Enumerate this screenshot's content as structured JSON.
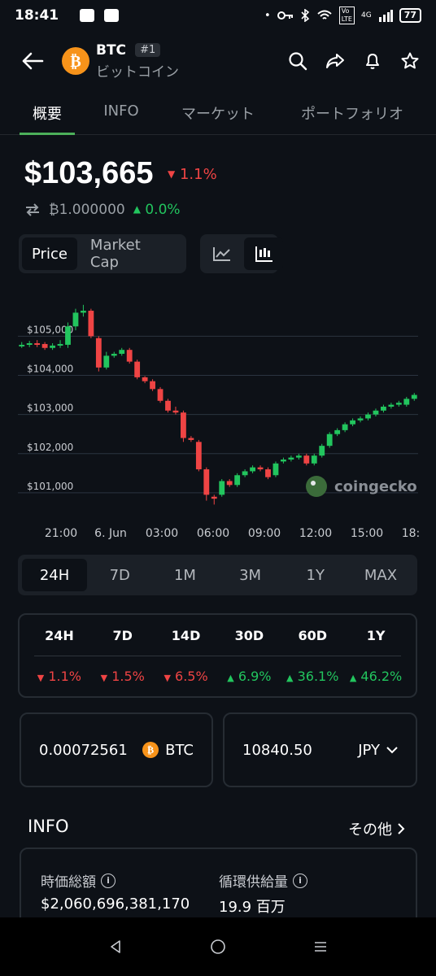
{
  "status": {
    "time": "18:41",
    "battery": "77",
    "network": "4G"
  },
  "header": {
    "symbol": "BTC",
    "rank": "#1",
    "name_jp": "ビットコイン"
  },
  "tabs": [
    "概要",
    "INFO",
    "マーケット",
    "ポートフォリオ"
  ],
  "price": {
    "value": "$103,665",
    "change": "1.1%",
    "btc_value": "₿1.000000",
    "btc_change": "0.0%"
  },
  "chart_toggle": {
    "price": "Price",
    "market_cap": "Market Cap"
  },
  "chart_data": {
    "type": "candlestick",
    "y_ticks": [
      "$105,000",
      "$104,000",
      "$103,000",
      "$102,000",
      "$101,000"
    ],
    "x_ticks": [
      "21:00",
      "6. Jun",
      "03:00",
      "06:00",
      "09:00",
      "12:00",
      "15:00",
      "18:"
    ],
    "ylim": [
      100500,
      105900
    ],
    "watermark": "coingecko",
    "candles": [
      {
        "o": 104750,
        "c": 104780,
        "h": 104850,
        "l": 104700
      },
      {
        "o": 104780,
        "c": 104820,
        "h": 104880,
        "l": 104720
      },
      {
        "o": 104820,
        "c": 104800,
        "h": 104900,
        "l": 104720
      },
      {
        "o": 104800,
        "c": 104700,
        "h": 104850,
        "l": 104650
      },
      {
        "o": 104700,
        "c": 104760,
        "h": 104820,
        "l": 104650
      },
      {
        "o": 104760,
        "c": 104800,
        "h": 104900,
        "l": 104700
      },
      {
        "o": 104780,
        "c": 105250,
        "h": 105350,
        "l": 104700
      },
      {
        "o": 105250,
        "c": 105600,
        "h": 105700,
        "l": 105150
      },
      {
        "o": 105600,
        "c": 105650,
        "h": 105800,
        "l": 105500
      },
      {
        "o": 105650,
        "c": 105000,
        "h": 105700,
        "l": 104950
      },
      {
        "o": 104950,
        "c": 104200,
        "h": 105000,
        "l": 104100
      },
      {
        "o": 104200,
        "c": 104500,
        "h": 104600,
        "l": 104150
      },
      {
        "o": 104500,
        "c": 104550,
        "h": 104600,
        "l": 104450
      },
      {
        "o": 104550,
        "c": 104650,
        "h": 104700,
        "l": 104500
      },
      {
        "o": 104650,
        "c": 104350,
        "h": 104700,
        "l": 104300
      },
      {
        "o": 104350,
        "c": 103950,
        "h": 104400,
        "l": 103900
      },
      {
        "o": 103950,
        "c": 103850,
        "h": 103980,
        "l": 103800
      },
      {
        "o": 103850,
        "c": 103650,
        "h": 103900,
        "l": 103600
      },
      {
        "o": 103650,
        "c": 103350,
        "h": 103700,
        "l": 103300
      },
      {
        "o": 103350,
        "c": 103100,
        "h": 103400,
        "l": 103050
      },
      {
        "o": 103100,
        "c": 103050,
        "h": 103200,
        "l": 103000
      },
      {
        "o": 103050,
        "c": 102400,
        "h": 103100,
        "l": 102300
      },
      {
        "o": 102400,
        "c": 102350,
        "h": 102450,
        "l": 102300
      },
      {
        "o": 102300,
        "c": 101600,
        "h": 102350,
        "l": 101550
      },
      {
        "o": 101600,
        "c": 100950,
        "h": 101650,
        "l": 100800
      },
      {
        "o": 100900,
        "c": 100850,
        "h": 100950,
        "l": 100700
      },
      {
        "o": 100950,
        "c": 101300,
        "h": 101350,
        "l": 100900
      },
      {
        "o": 101300,
        "c": 101200,
        "h": 101350,
        "l": 101150
      },
      {
        "o": 101200,
        "c": 101450,
        "h": 101500,
        "l": 101150
      },
      {
        "o": 101450,
        "c": 101550,
        "h": 101600,
        "l": 101400
      },
      {
        "o": 101550,
        "c": 101650,
        "h": 101700,
        "l": 101500
      },
      {
        "o": 101650,
        "c": 101600,
        "h": 101700,
        "l": 101550
      },
      {
        "o": 101600,
        "c": 101400,
        "h": 101650,
        "l": 101350
      },
      {
        "o": 101450,
        "c": 101750,
        "h": 101800,
        "l": 101400
      },
      {
        "o": 101800,
        "c": 101850,
        "h": 101900,
        "l": 101750
      },
      {
        "o": 101850,
        "c": 101900,
        "h": 101950,
        "l": 101800
      },
      {
        "o": 101900,
        "c": 101950,
        "h": 102000,
        "l": 101850
      },
      {
        "o": 101950,
        "c": 101750,
        "h": 102000,
        "l": 101700
      },
      {
        "o": 101750,
        "c": 101950,
        "h": 102000,
        "l": 101700
      },
      {
        "o": 101950,
        "c": 102200,
        "h": 102250,
        "l": 101900
      },
      {
        "o": 102200,
        "c": 102500,
        "h": 102550,
        "l": 102150
      },
      {
        "o": 102500,
        "c": 102600,
        "h": 102650,
        "l": 102450
      },
      {
        "o": 102600,
        "c": 102750,
        "h": 102800,
        "l": 102550
      },
      {
        "o": 102750,
        "c": 102850,
        "h": 102900,
        "l": 102700
      },
      {
        "o": 102850,
        "c": 102900,
        "h": 102950,
        "l": 102800
      },
      {
        "o": 102900,
        "c": 103000,
        "h": 103050,
        "l": 102850
      },
      {
        "o": 103000,
        "c": 103100,
        "h": 103150,
        "l": 102950
      },
      {
        "o": 103100,
        "c": 103200,
        "h": 103250,
        "l": 103050
      },
      {
        "o": 103200,
        "c": 103250,
        "h": 103300,
        "l": 103150
      },
      {
        "o": 103250,
        "c": 103300,
        "h": 103350,
        "l": 103200
      },
      {
        "o": 103250,
        "c": 103400,
        "h": 103450,
        "l": 103200
      },
      {
        "o": 103400,
        "c": 103500,
        "h": 103550,
        "l": 103350
      }
    ]
  },
  "ranges": [
    "24H",
    "7D",
    "1M",
    "3M",
    "1Y",
    "MAX"
  ],
  "performance": {
    "periods": [
      "24H",
      "7D",
      "14D",
      "30D",
      "60D",
      "1Y"
    ],
    "values": [
      "1.1%",
      "1.5%",
      "6.5%",
      "6.9%",
      "36.1%",
      "46.2%"
    ],
    "directions": [
      "down",
      "down",
      "down",
      "up",
      "up",
      "up"
    ]
  },
  "converter": {
    "btc_amount": "0.00072561",
    "btc_label": "BTC",
    "fiat_amount": "10840.50",
    "fiat_label": "JPY"
  },
  "info": {
    "title": "INFO",
    "more": "その他",
    "market_cap_label": "時価総額",
    "market_cap_value": "$2,060,696,381,170",
    "supply_label": "循環供給量",
    "supply_value": "19.9 百万"
  },
  "colors": {
    "up": "#22c55e",
    "down": "#ef4444",
    "accent": "#4cb05a",
    "btc": "#f7931a"
  }
}
